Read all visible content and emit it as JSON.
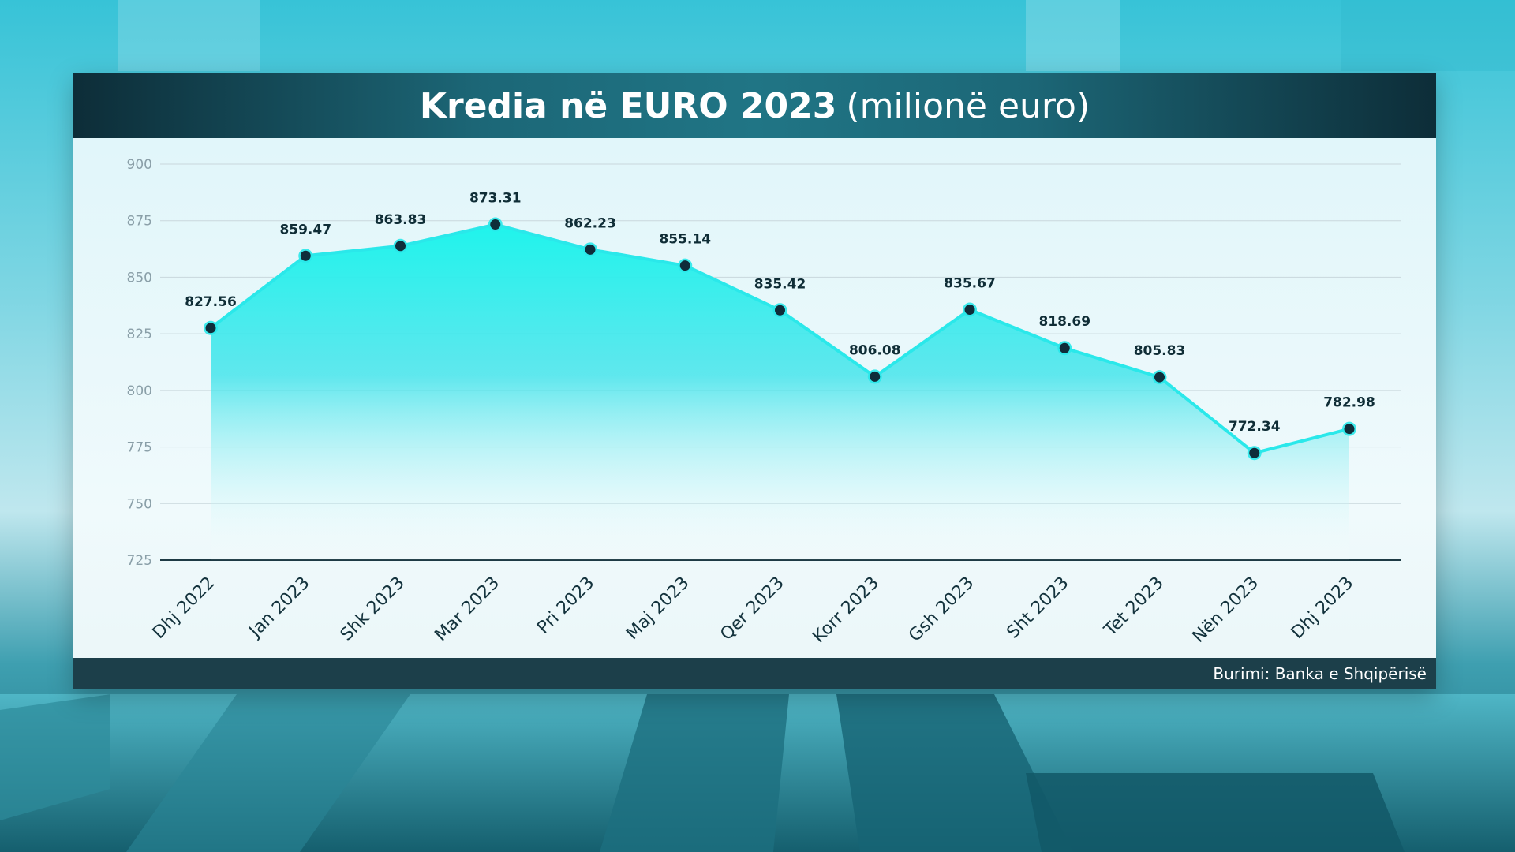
{
  "title": {
    "main": "Kredia në EURO 2023",
    "unit": "(milionë euro)"
  },
  "footer": {
    "source": "Burimi: Banka e Shqipërisë"
  },
  "colors": {
    "line": "#2ae8ea",
    "area_top": "#1ff4ec",
    "marker_fill": "#0f2d3a",
    "title_bar": "#1c6777",
    "footer_bar": "#1c3f4a"
  },
  "chart_data": {
    "type": "area",
    "title": "Kredia në EURO 2023 (milionë euro)",
    "categories": [
      "Dhj 2022",
      "Jan 2023",
      "Shk 2023",
      "Mar 2023",
      "Pri 2023",
      "Maj 2023",
      "Qer 2023",
      "Korr 2023",
      "Gsh 2023",
      "Sht 2023",
      "Tet 2023",
      "Nën 2023",
      "Dhj 2023"
    ],
    "values": [
      827.56,
      859.47,
      863.83,
      873.31,
      862.23,
      855.14,
      835.42,
      806.08,
      835.67,
      818.69,
      805.83,
      772.34,
      782.98
    ],
    "data_labels": [
      "827.56",
      "859.47",
      "863.83",
      "873.31",
      "862.23",
      "855.14",
      "835.42",
      "806.08",
      "835.67",
      "818.69",
      "805.83",
      "772.34",
      "782.98"
    ],
    "ylim": [
      725,
      900
    ],
    "yticks": [
      725,
      750,
      775,
      800,
      825,
      850,
      875,
      900
    ],
    "grid": true,
    "legend": "none",
    "xlabel": "",
    "ylabel": ""
  }
}
